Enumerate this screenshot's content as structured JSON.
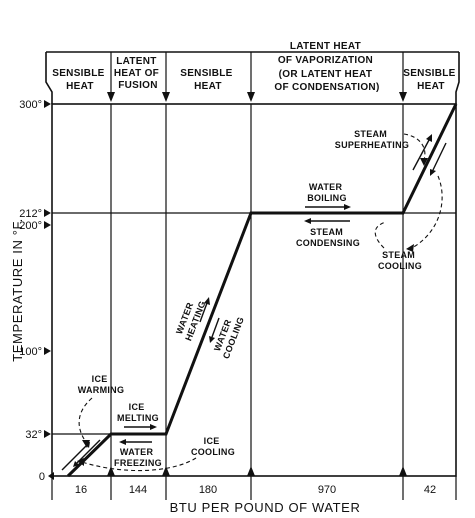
{
  "phase_headers": {
    "sensible_heat_1": [
      "SENSIBLE",
      "HEAT"
    ],
    "latent_fusion": [
      "LATENT",
      "HEAT OF",
      "FUSION"
    ],
    "sensible_heat_2": [
      "SENSIBLE",
      "HEAT"
    ],
    "latent_vaporization": [
      "LATENT HEAT",
      "OF VAPORIZATION",
      "(OR LATENT HEAT",
      "OF CONDENSATION)"
    ],
    "sensible_heat_3": [
      "SENSIBLE",
      "HEAT"
    ]
  },
  "y_axis": {
    "title": "TEMPERATURE IN °F.",
    "ticks": [
      "0",
      "32°",
      "100°",
      "200°",
      "212°",
      "300°"
    ]
  },
  "x_axis": {
    "title": "BTU PER POUND OF WATER",
    "segments": [
      "16",
      "144",
      "180",
      "970",
      "42"
    ]
  },
  "annotations": {
    "ice_warming": [
      "ICE",
      "WARMING"
    ],
    "ice_melting": [
      "ICE",
      "MELTING"
    ],
    "water_freezing": [
      "WATER",
      "FREEZING"
    ],
    "ice_cooling": [
      "ICE",
      "COOLING"
    ],
    "water_heating": [
      "WATER",
      "HEATING"
    ],
    "water_cooling": [
      "WATER",
      "COOLING"
    ],
    "water_boiling": [
      "WATER",
      "BOILING"
    ],
    "steam_condensing": [
      "STEAM",
      "CONDENSING"
    ],
    "steam_superheating": [
      "STEAM",
      "SUPERHEATING"
    ],
    "steam_cooling": [
      "STEAM",
      "COOLING"
    ]
  }
}
